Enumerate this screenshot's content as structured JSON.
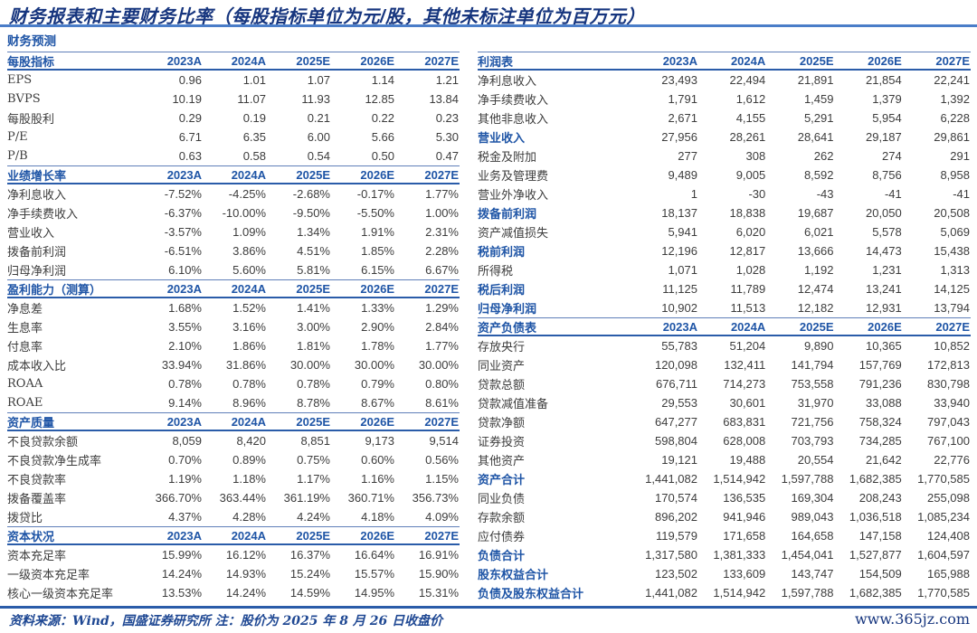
{
  "page": {
    "title": "财务报表和主要财务比率（每股指标单位为元/股，其他未标注单位为百万元）",
    "footer": {
      "source_note": "资料来源：Wind，国盛证券研究所  注：股价为 2025 年 8 月 26 日收盘价",
      "site": "www.365jz.com"
    },
    "colors": {
      "title_blue": "#16357e",
      "accent_blue": "#1f55a6",
      "rule_top_blue": "#4a7dc8",
      "rule_blue": "#2a5ca9",
      "body_text": "#3d3d3d"
    }
  },
  "columns": [
    "2023A",
    "2024A",
    "2025E",
    "2026E",
    "2027E"
  ],
  "left_table": {
    "pretitle": "财务预测",
    "sections": [
      {
        "header": "每股指标",
        "rows": [
          {
            "label": "EPS",
            "values": [
              "0.96",
              "1.01",
              "1.07",
              "1.14",
              "1.21"
            ]
          },
          {
            "label": "BVPS",
            "values": [
              "10.19",
              "11.07",
              "11.93",
              "12.85",
              "13.84"
            ]
          },
          {
            "label": "每股股利",
            "values": [
              "0.29",
              "0.19",
              "0.21",
              "0.22",
              "0.23"
            ]
          },
          {
            "label": "P/E",
            "values": [
              "6.71",
              "6.35",
              "6.00",
              "5.66",
              "5.30"
            ]
          },
          {
            "label": "P/B",
            "values": [
              "0.63",
              "0.58",
              "0.54",
              "0.50",
              "0.47"
            ]
          }
        ]
      },
      {
        "header": "业绩增长率",
        "rows": [
          {
            "label": "净利息收入",
            "values": [
              "-7.52%",
              "-4.25%",
              "-2.68%",
              "-0.17%",
              "1.77%"
            ]
          },
          {
            "label": "净手续费收入",
            "values": [
              "-6.37%",
              "-10.00%",
              "-9.50%",
              "-5.50%",
              "1.00%"
            ]
          },
          {
            "label": "营业收入",
            "values": [
              "-3.57%",
              "1.09%",
              "1.34%",
              "1.91%",
              "2.31%"
            ]
          },
          {
            "label": "拨备前利润",
            "values": [
              "-6.51%",
              "3.86%",
              "4.51%",
              "1.85%",
              "2.28%"
            ]
          },
          {
            "label": "归母净利润",
            "values": [
              "6.10%",
              "5.60%",
              "5.81%",
              "6.15%",
              "6.67%"
            ]
          }
        ]
      },
      {
        "header": "盈利能力（测算）",
        "rows": [
          {
            "label": "净息差",
            "values": [
              "1.68%",
              "1.52%",
              "1.41%",
              "1.33%",
              "1.29%"
            ]
          },
          {
            "label": "生息率",
            "values": [
              "3.55%",
              "3.16%",
              "3.00%",
              "2.90%",
              "2.84%"
            ]
          },
          {
            "label": "付息率",
            "values": [
              "2.10%",
              "1.86%",
              "1.81%",
              "1.78%",
              "1.77%"
            ]
          },
          {
            "label": "成本收入比",
            "values": [
              "33.94%",
              "31.86%",
              "30.00%",
              "30.00%",
              "30.00%"
            ]
          },
          {
            "label": "ROAA",
            "values": [
              "0.78%",
              "0.78%",
              "0.78%",
              "0.79%",
              "0.80%"
            ]
          },
          {
            "label": "ROAE",
            "values": [
              "9.14%",
              "8.96%",
              "8.78%",
              "8.67%",
              "8.61%"
            ]
          }
        ]
      },
      {
        "header": "资产质量",
        "rows": [
          {
            "label": "不良贷款余额",
            "values": [
              "8,059",
              "8,420",
              "8,851",
              "9,173",
              "9,514"
            ]
          },
          {
            "label": "不良贷款净生成率",
            "values": [
              "0.70%",
              "0.89%",
              "0.75%",
              "0.60%",
              "0.56%"
            ]
          },
          {
            "label": "不良贷款率",
            "values": [
              "1.19%",
              "1.18%",
              "1.17%",
              "1.16%",
              "1.15%"
            ]
          },
          {
            "label": "拨备覆盖率",
            "values": [
              "366.70%",
              "363.44%",
              "361.19%",
              "360.71%",
              "356.73%"
            ]
          },
          {
            "label": "拨贷比",
            "values": [
              "4.37%",
              "4.28%",
              "4.24%",
              "4.18%",
              "4.09%"
            ]
          }
        ]
      },
      {
        "header": "资本状况",
        "rows": [
          {
            "label": "资本充足率",
            "values": [
              "15.99%",
              "16.12%",
              "16.37%",
              "16.64%",
              "16.91%"
            ]
          },
          {
            "label": "一级资本充足率",
            "values": [
              "14.24%",
              "14.93%",
              "15.24%",
              "15.57%",
              "15.90%"
            ]
          },
          {
            "label": "核心一级资本充足率",
            "values": [
              "13.53%",
              "14.24%",
              "14.59%",
              "14.95%",
              "15.31%"
            ]
          }
        ]
      }
    ]
  },
  "right_table": {
    "sections": [
      {
        "header": "利润表",
        "rows": [
          {
            "label": "净利息收入",
            "values": [
              "23,493",
              "22,494",
              "21,891",
              "21,854",
              "22,241"
            ]
          },
          {
            "label": "净手续费收入",
            "values": [
              "1,791",
              "1,612",
              "1,459",
              "1,379",
              "1,392"
            ]
          },
          {
            "label": "其他非息收入",
            "values": [
              "2,671",
              "4,155",
              "5,291",
              "5,954",
              "6,228"
            ]
          },
          {
            "label": "营业收入",
            "hl": true,
            "values": [
              "27,956",
              "28,261",
              "28,641",
              "29,187",
              "29,861"
            ]
          },
          {
            "label": "税金及附加",
            "values": [
              "277",
              "308",
              "262",
              "274",
              "291"
            ]
          },
          {
            "label": "业务及管理费",
            "values": [
              "9,489",
              "9,005",
              "8,592",
              "8,756",
              "8,958"
            ]
          },
          {
            "label": "营业外净收入",
            "values": [
              "1",
              "-30",
              "-43",
              "-41",
              "-41"
            ]
          },
          {
            "label": "拨备前利润",
            "hl": true,
            "values": [
              "18,137",
              "18,838",
              "19,687",
              "20,050",
              "20,508"
            ]
          },
          {
            "label": "资产减值损失",
            "values": [
              "5,941",
              "6,020",
              "6,021",
              "5,578",
              "5,069"
            ]
          },
          {
            "label": "税前利润",
            "hl": true,
            "values": [
              "12,196",
              "12,817",
              "13,666",
              "14,473",
              "15,438"
            ]
          },
          {
            "label": "所得税",
            "values": [
              "1,071",
              "1,028",
              "1,192",
              "1,231",
              "1,313"
            ]
          },
          {
            "label": "税后利润",
            "hl": true,
            "values": [
              "11,125",
              "11,789",
              "12,474",
              "13,241",
              "14,125"
            ]
          },
          {
            "label": "归母净利润",
            "hl": true,
            "values": [
              "10,902",
              "11,513",
              "12,182",
              "12,931",
              "13,794"
            ]
          }
        ]
      },
      {
        "header": "资产负债表",
        "rows": [
          {
            "label": "存放央行",
            "values": [
              "55,783",
              "51,204",
              "9,890",
              "10,365",
              "10,852"
            ]
          },
          {
            "label": "同业资产",
            "values": [
              "120,098",
              "132,411",
              "141,794",
              "157,769",
              "172,813"
            ]
          },
          {
            "label": "贷款总额",
            "values": [
              "676,711",
              "714,273",
              "753,558",
              "791,236",
              "830,798"
            ]
          },
          {
            "label": "贷款减值准备",
            "values": [
              "29,553",
              "30,601",
              "31,970",
              "33,088",
              "33,940"
            ]
          },
          {
            "label": "贷款净额",
            "values": [
              "647,277",
              "683,831",
              "721,756",
              "758,324",
              "797,043"
            ]
          },
          {
            "label": "证券投资",
            "values": [
              "598,804",
              "628,008",
              "703,793",
              "734,285",
              "767,100"
            ]
          },
          {
            "label": "其他资产",
            "values": [
              "19,121",
              "19,488",
              "20,554",
              "21,642",
              "22,776"
            ]
          },
          {
            "label": "资产合计",
            "hl": true,
            "values": [
              "1,441,082",
              "1,514,942",
              "1,597,788",
              "1,682,385",
              "1,770,585"
            ]
          },
          {
            "label": "同业负债",
            "values": [
              "170,574",
              "136,535",
              "169,304",
              "208,243",
              "255,098"
            ]
          },
          {
            "label": "存款余额",
            "values": [
              "896,202",
              "941,946",
              "989,043",
              "1,036,518",
              "1,085,234"
            ]
          },
          {
            "label": "应付债券",
            "values": [
              "119,579",
              "171,658",
              "164,658",
              "147,158",
              "124,408"
            ]
          },
          {
            "label": "负债合计",
            "hl": true,
            "values": [
              "1,317,580",
              "1,381,333",
              "1,454,041",
              "1,527,877",
              "1,604,597"
            ]
          },
          {
            "label": "股东权益合计",
            "hl": true,
            "values": [
              "123,502",
              "133,609",
              "143,747",
              "154,509",
              "165,988"
            ]
          },
          {
            "label": "负债及股东权益合计",
            "hl": true,
            "values": [
              "1,441,082",
              "1,514,942",
              "1,597,788",
              "1,682,385",
              "1,770,585"
            ]
          }
        ]
      }
    ]
  }
}
